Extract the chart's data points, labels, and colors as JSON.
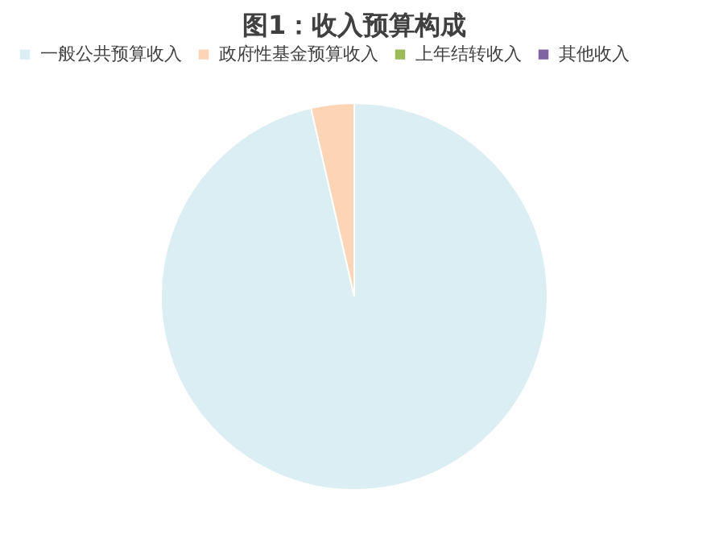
{
  "chart_data": {
    "type": "pie",
    "title": "图1：收入预算构成",
    "categories": [
      "一般公共预算收入",
      "政府性基金预算收入",
      "上年结转收入",
      "其他收入"
    ],
    "values": [
      96.4,
      3.6,
      0,
      0
    ],
    "colors": [
      "#daeef3",
      "#fbd5b5",
      "#9bbb59",
      "#8064a2"
    ],
    "legend": "top"
  }
}
